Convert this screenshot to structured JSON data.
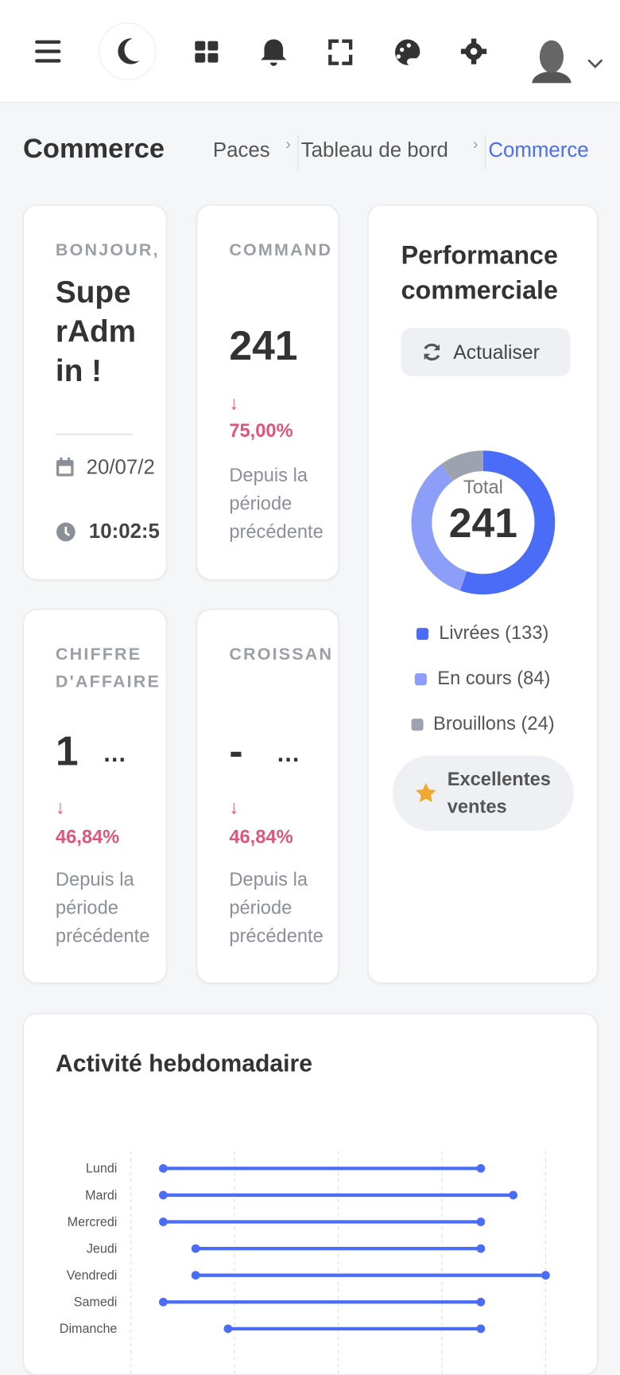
{
  "page": {
    "title": "Commerce",
    "breadcrumb": [
      "Paces",
      "Tableau de bord",
      "Commerce"
    ]
  },
  "cards": {
    "welcome": {
      "label": "BONJOUR,",
      "name": "SuperAdmin !",
      "date": "20/07/2",
      "time": "10:02:5"
    },
    "orders": {
      "label": "COMMAND",
      "value": "241",
      "change": "75,00%",
      "note": "Depuis la période précédente"
    },
    "revenue": {
      "label": "CHIFFRE D'AFFAIRE",
      "value": "1",
      "more": "…",
      "change": "46,84%",
      "note": "Depuis la période précédente"
    },
    "growth": {
      "label": "CROISSAN",
      "value": "-",
      "more": "…",
      "change": "46,84%",
      "note": "Depuis la période précédente"
    }
  },
  "performance": {
    "title": "Performance commerciale",
    "button": "Actualiser",
    "total_label": "Total",
    "total": "241",
    "chart_data": {
      "type": "donut",
      "categories": [
        "Livrées (133)",
        "En cours (84)",
        "Brouillons (24)"
      ],
      "values": [
        133,
        84,
        24
      ],
      "colors": [
        "#4a6cf7",
        "#8c9ef8",
        "#9ca3af"
      ]
    },
    "badge": "Excellentes ventes"
  },
  "activity": {
    "title": "Activité hebdomadaire",
    "chart_data": {
      "type": "dumbbell",
      "categories": [
        "Lundi",
        "Mardi",
        "Mercredi",
        "Jeudi",
        "Vendredi",
        "Samedi",
        "Dimanche"
      ],
      "low": [
        1.25,
        1.25,
        1.25,
        2.5,
        2.5,
        1.25,
        3.75
      ],
      "high": [
        13.5,
        14.75,
        13.5,
        13.5,
        16,
        13.5,
        13.5
      ],
      "color": "#4a6cf7",
      "xlim": [
        0,
        16
      ],
      "xticks": [
        0,
        4,
        8,
        12,
        16
      ],
      "grid": true
    }
  }
}
